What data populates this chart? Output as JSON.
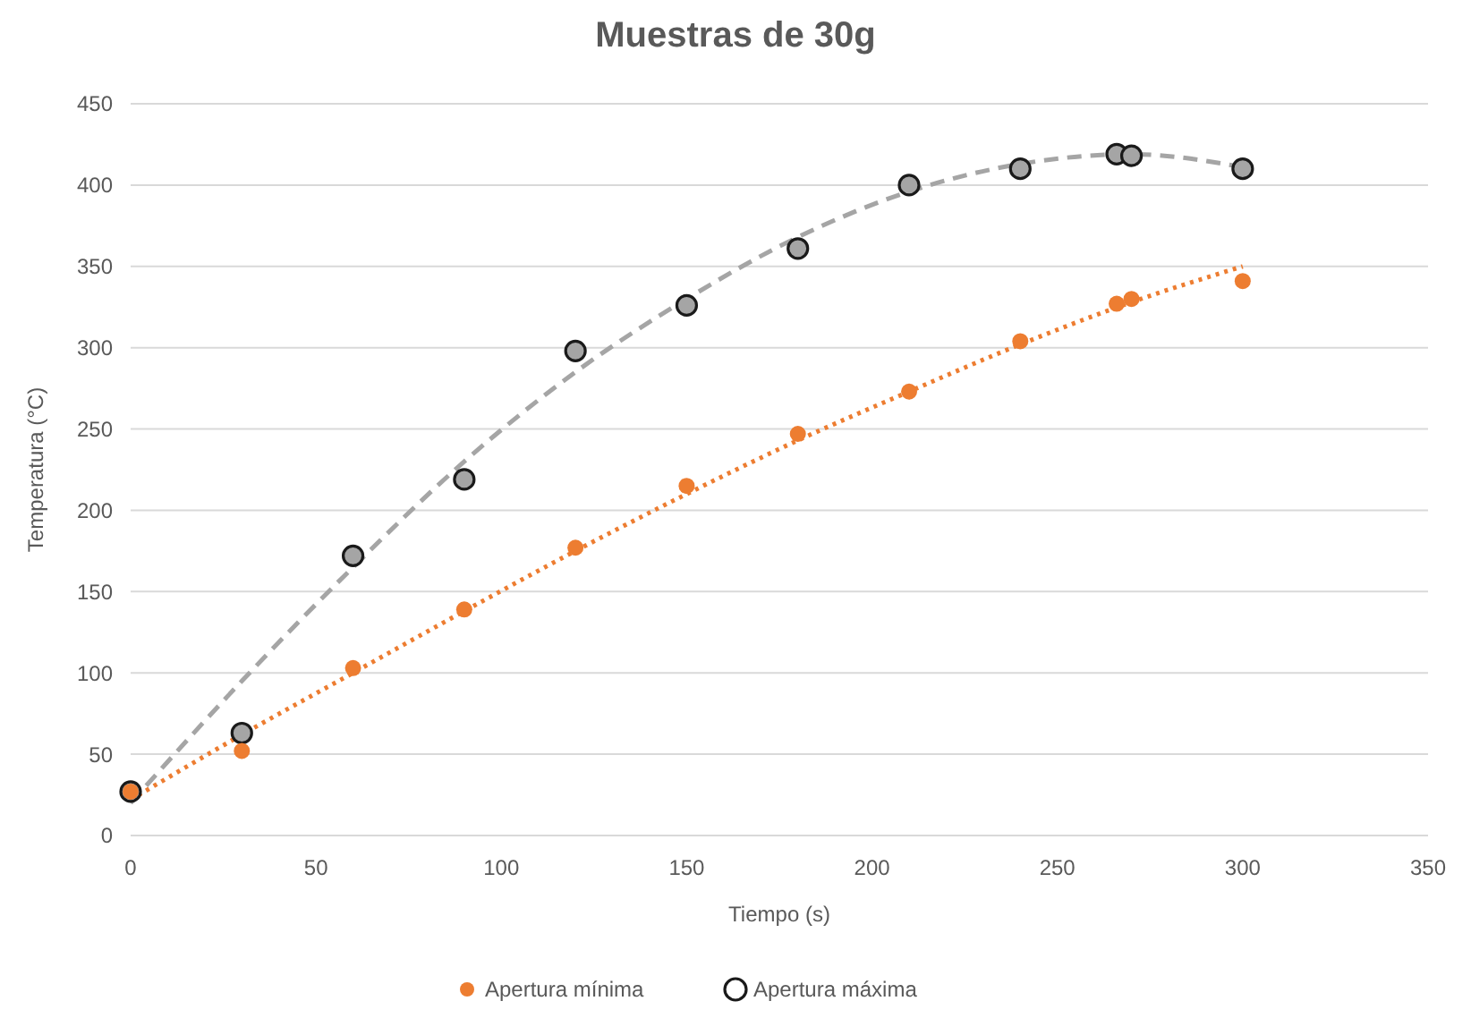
{
  "chart_data": {
    "type": "scatter",
    "title": "Muestras de 30g",
    "xlabel": "Tiempo (s)",
    "ylabel": "Temperatura (°C)",
    "xlim": [
      0,
      350
    ],
    "xticks": [
      0,
      50,
      100,
      150,
      200,
      250,
      300,
      350
    ],
    "ylim": [
      0,
      450
    ],
    "yticks": [
      0,
      50,
      100,
      150,
      200,
      250,
      300,
      350,
      400,
      450
    ],
    "grid": "y",
    "legend": "bottom",
    "marker": "circle",
    "series": [
      {
        "name": "Apertura mínima",
        "color": "#ed7d31",
        "x": [
          0,
          30,
          60,
          90,
          120,
          150,
          180,
          210,
          240,
          266,
          270,
          300
        ],
        "values": [
          27,
          52,
          103,
          139,
          177,
          215,
          247,
          273,
          304,
          327,
          330,
          341
        ]
      },
      {
        "name": "Apertura máxima",
        "color": "#a5a5a5",
        "x": [
          0,
          30,
          60,
          90,
          120,
          150,
          180,
          210,
          240,
          266,
          270,
          300
        ],
        "values": [
          27,
          63,
          172,
          219,
          298,
          326,
          361,
          400,
          410,
          419,
          418,
          410
        ]
      },
      {
        "type": "line",
        "color": "#ed7d31",
        "line_style": "dotted",
        "marker": "none",
        "x": [
          0,
          30,
          60,
          90,
          120,
          150,
          180,
          210,
          240,
          270,
          300
        ],
        "values": [
          22,
          62,
          100,
          138,
          175,
          210,
          243,
          273,
          302,
          328,
          350
        ]
      },
      {
        "type": "line",
        "color": "#a5a5a5",
        "line_style": "dashed",
        "marker": "none",
        "x": [
          0,
          30,
          60,
          90,
          120,
          150,
          180,
          210,
          240,
          270,
          300
        ],
        "values": [
          20,
          95,
          165,
          230,
          285,
          330,
          368,
          396,
          413,
          419,
          411
        ]
      }
    ]
  }
}
